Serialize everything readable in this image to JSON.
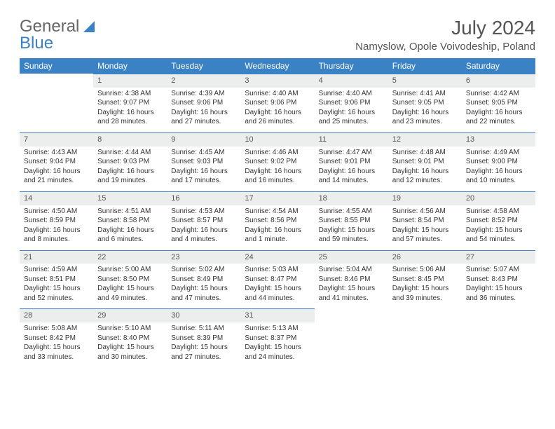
{
  "logo": {
    "text1": "General",
    "text2": "Blue"
  },
  "title": "July 2024",
  "location": "Namyslow, Opole Voivodeship, Poland",
  "columns": [
    "Sunday",
    "Monday",
    "Tuesday",
    "Wednesday",
    "Thursday",
    "Friday",
    "Saturday"
  ],
  "header_bg": "#3b82c4",
  "daynum_bg": "#eceded",
  "weeks": [
    [
      null,
      {
        "n": "1",
        "sr": "4:38 AM",
        "ss": "9:07 PM",
        "dl": "16 hours and 28 minutes."
      },
      {
        "n": "2",
        "sr": "4:39 AM",
        "ss": "9:06 PM",
        "dl": "16 hours and 27 minutes."
      },
      {
        "n": "3",
        "sr": "4:40 AM",
        "ss": "9:06 PM",
        "dl": "16 hours and 26 minutes."
      },
      {
        "n": "4",
        "sr": "4:40 AM",
        "ss": "9:06 PM",
        "dl": "16 hours and 25 minutes."
      },
      {
        "n": "5",
        "sr": "4:41 AM",
        "ss": "9:05 PM",
        "dl": "16 hours and 23 minutes."
      },
      {
        "n": "6",
        "sr": "4:42 AM",
        "ss": "9:05 PM",
        "dl": "16 hours and 22 minutes."
      }
    ],
    [
      {
        "n": "7",
        "sr": "4:43 AM",
        "ss": "9:04 PM",
        "dl": "16 hours and 21 minutes."
      },
      {
        "n": "8",
        "sr": "4:44 AM",
        "ss": "9:03 PM",
        "dl": "16 hours and 19 minutes."
      },
      {
        "n": "9",
        "sr": "4:45 AM",
        "ss": "9:03 PM",
        "dl": "16 hours and 17 minutes."
      },
      {
        "n": "10",
        "sr": "4:46 AM",
        "ss": "9:02 PM",
        "dl": "16 hours and 16 minutes."
      },
      {
        "n": "11",
        "sr": "4:47 AM",
        "ss": "9:01 PM",
        "dl": "16 hours and 14 minutes."
      },
      {
        "n": "12",
        "sr": "4:48 AM",
        "ss": "9:01 PM",
        "dl": "16 hours and 12 minutes."
      },
      {
        "n": "13",
        "sr": "4:49 AM",
        "ss": "9:00 PM",
        "dl": "16 hours and 10 minutes."
      }
    ],
    [
      {
        "n": "14",
        "sr": "4:50 AM",
        "ss": "8:59 PM",
        "dl": "16 hours and 8 minutes."
      },
      {
        "n": "15",
        "sr": "4:51 AM",
        "ss": "8:58 PM",
        "dl": "16 hours and 6 minutes."
      },
      {
        "n": "16",
        "sr": "4:53 AM",
        "ss": "8:57 PM",
        "dl": "16 hours and 4 minutes."
      },
      {
        "n": "17",
        "sr": "4:54 AM",
        "ss": "8:56 PM",
        "dl": "16 hours and 1 minute."
      },
      {
        "n": "18",
        "sr": "4:55 AM",
        "ss": "8:55 PM",
        "dl": "15 hours and 59 minutes."
      },
      {
        "n": "19",
        "sr": "4:56 AM",
        "ss": "8:54 PM",
        "dl": "15 hours and 57 minutes."
      },
      {
        "n": "20",
        "sr": "4:58 AM",
        "ss": "8:52 PM",
        "dl": "15 hours and 54 minutes."
      }
    ],
    [
      {
        "n": "21",
        "sr": "4:59 AM",
        "ss": "8:51 PM",
        "dl": "15 hours and 52 minutes."
      },
      {
        "n": "22",
        "sr": "5:00 AM",
        "ss": "8:50 PM",
        "dl": "15 hours and 49 minutes."
      },
      {
        "n": "23",
        "sr": "5:02 AM",
        "ss": "8:49 PM",
        "dl": "15 hours and 47 minutes."
      },
      {
        "n": "24",
        "sr": "5:03 AM",
        "ss": "8:47 PM",
        "dl": "15 hours and 44 minutes."
      },
      {
        "n": "25",
        "sr": "5:04 AM",
        "ss": "8:46 PM",
        "dl": "15 hours and 41 minutes."
      },
      {
        "n": "26",
        "sr": "5:06 AM",
        "ss": "8:45 PM",
        "dl": "15 hours and 39 minutes."
      },
      {
        "n": "27",
        "sr": "5:07 AM",
        "ss": "8:43 PM",
        "dl": "15 hours and 36 minutes."
      }
    ],
    [
      {
        "n": "28",
        "sr": "5:08 AM",
        "ss": "8:42 PM",
        "dl": "15 hours and 33 minutes."
      },
      {
        "n": "29",
        "sr": "5:10 AM",
        "ss": "8:40 PM",
        "dl": "15 hours and 30 minutes."
      },
      {
        "n": "30",
        "sr": "5:11 AM",
        "ss": "8:39 PM",
        "dl": "15 hours and 27 minutes."
      },
      {
        "n": "31",
        "sr": "5:13 AM",
        "ss": "8:37 PM",
        "dl": "15 hours and 24 minutes."
      },
      null,
      null,
      null
    ]
  ],
  "labels": {
    "sunrise": "Sunrise:",
    "sunset": "Sunset:",
    "daylight": "Daylight:"
  }
}
